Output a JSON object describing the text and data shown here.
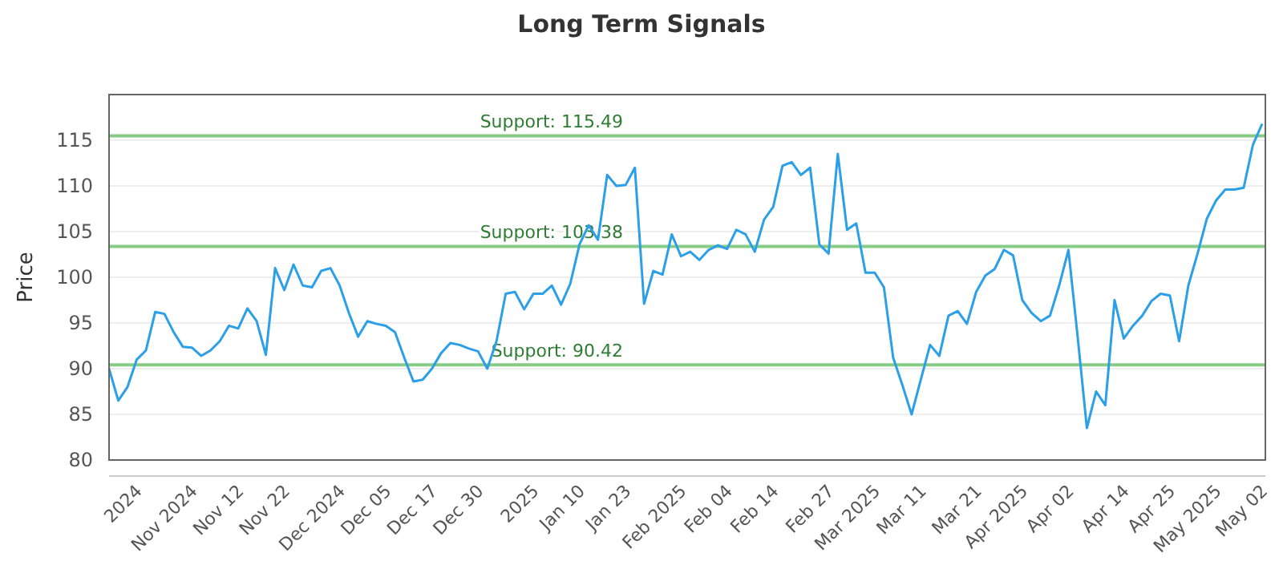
{
  "chart_data": {
    "type": "line",
    "title": "Long Term Signals",
    "ylabel": "Price",
    "categories": [
      null,
      null,
      null,
      "2024",
      null,
      null,
      null,
      null,
      null,
      "Nov 2024",
      null,
      null,
      null,
      null,
      "Nov 12",
      null,
      null,
      null,
      null,
      "Nov 22",
      null,
      null,
      null,
      null,
      null,
      "Dec 2024",
      null,
      null,
      null,
      null,
      "Dec 05",
      null,
      null,
      null,
      null,
      "Dec 17",
      null,
      null,
      null,
      null,
      "Dec 30",
      null,
      null,
      null,
      null,
      null,
      "2025",
      null,
      null,
      null,
      null,
      "Jan 10",
      null,
      null,
      null,
      null,
      "Jan 23",
      null,
      null,
      null,
      null,
      null,
      "Feb 2025",
      null,
      null,
      null,
      null,
      "Feb 04",
      null,
      null,
      null,
      null,
      "Feb 14",
      null,
      null,
      null,
      null,
      null,
      "Feb 27",
      null,
      null,
      null,
      null,
      "Mar 2025",
      null,
      null,
      null,
      null,
      "Mar 11",
      null,
      null,
      null,
      null,
      null,
      "Mar 21",
      null,
      null,
      null,
      null,
      "Apr 2025",
      null,
      null,
      null,
      null,
      "Apr 02",
      null,
      null,
      null,
      null,
      null,
      "Apr 14",
      null,
      null,
      null,
      null,
      "Apr 25",
      null,
      null,
      null,
      null,
      "May 2025",
      null,
      null,
      null,
      null,
      "May 02"
    ],
    "series": [
      {
        "color": "#2b9fe8",
        "values": [
          90,
          86.5,
          88,
          91,
          92,
          96.2,
          96,
          94,
          92.4,
          92.3,
          91.4,
          92,
          93,
          94.7,
          94.4,
          96.6,
          95.2,
          91.5,
          101,
          98.6,
          101.4,
          99.1,
          98.9,
          100.7,
          101,
          99.1,
          96.1,
          93.5,
          95.2,
          94.9,
          94.7,
          94,
          91.2,
          88.6,
          88.8,
          90,
          91.7,
          92.8,
          92.6,
          92.2,
          91.9,
          90,
          93,
          98.2,
          98.4,
          96.5,
          98.2,
          98.2,
          99.1,
          97,
          99.3,
          103.6,
          105.7,
          104.1,
          111.2,
          110,
          110.1,
          112,
          97.1,
          100.7,
          100.3,
          104.7,
          102.3,
          102.8,
          101.9,
          103,
          103.5,
          103.1,
          105.2,
          104.7,
          102.8,
          106.3,
          107.7,
          112.2,
          112.6,
          111.2,
          112,
          103.6,
          102.6,
          113.5,
          105.2,
          105.9,
          100.5,
          100.5,
          98.9,
          91.2,
          88.2,
          85,
          88.8,
          92.6,
          91.4,
          95.8,
          96.3,
          94.9,
          98.4,
          100.2,
          100.9,
          103,
          102.4,
          97.5,
          96.1,
          95.2,
          95.8,
          99.1,
          103,
          93.5,
          83.5,
          87.5,
          86,
          97.5,
          93.3,
          94.7,
          95.8,
          97.4,
          98.2,
          98,
          93,
          99.1,
          102.6,
          106.4,
          108.4,
          109.6,
          109.6,
          109.8,
          114.5,
          116.8
        ]
      }
    ],
    "ylim": [
      80,
      120
    ],
    "yticks": [
      80,
      85,
      90,
      95,
      100,
      105,
      110,
      115
    ],
    "grid": "y",
    "line_style": "solid",
    "marker": "none",
    "ref_lines": [
      {
        "axis": "y",
        "value": 115.49,
        "label": "Support: 115.49",
        "color": "#86cc86"
      },
      {
        "axis": "y",
        "value": 103.38,
        "label": "Support: 103.38",
        "color": "#86cc86"
      },
      {
        "axis": "y",
        "value": 90.42,
        "label": "Support: 90.42",
        "color": "#86cc86"
      }
    ]
  }
}
